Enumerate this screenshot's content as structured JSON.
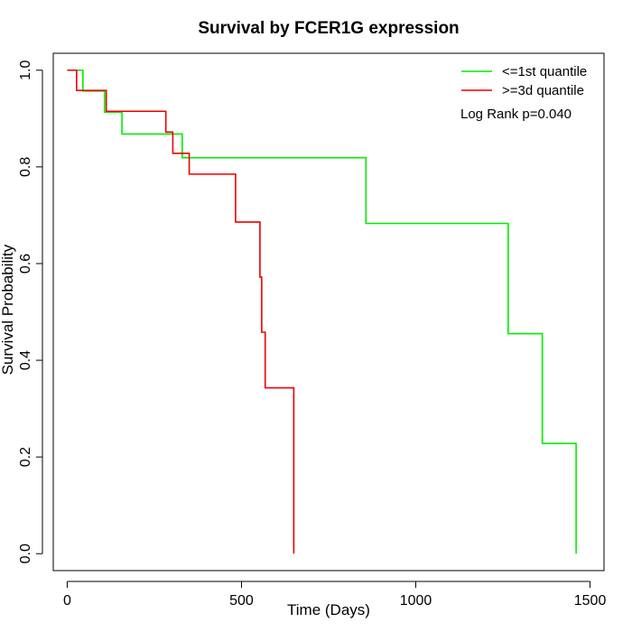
{
  "chart_data": {
    "type": "line",
    "title": "Survival by FCER1G expression",
    "xlabel": "Time (Days)",
    "ylabel": "Survival Probability",
    "xlim": [
      -40,
      1540
    ],
    "ylim": [
      -0.035,
      1.035
    ],
    "xticks": [
      0,
      500,
      1000,
      1500
    ],
    "xtick_labels": [
      "0",
      "500",
      "1000",
      "1500"
    ],
    "yticks": [
      0.0,
      0.2,
      0.4,
      0.6,
      0.8,
      1.0
    ],
    "ytick_labels": [
      "0.0",
      "0.2",
      "0.4",
      "0.6",
      "0.8",
      "1.0"
    ],
    "grid": false,
    "legend_position": "top-right",
    "annotation": "Log Rank p=0.040",
    "series": [
      {
        "name": "<=1st quantile",
        "color": "#00ee00",
        "step": true,
        "points": [
          {
            "x": 0,
            "y": 1.0
          },
          {
            "x": 45,
            "y": 1.0
          },
          {
            "x": 45,
            "y": 0.957
          },
          {
            "x": 107,
            "y": 0.957
          },
          {
            "x": 107,
            "y": 0.913
          },
          {
            "x": 157,
            "y": 0.913
          },
          {
            "x": 157,
            "y": 0.868
          },
          {
            "x": 330,
            "y": 0.868
          },
          {
            "x": 330,
            "y": 0.819
          },
          {
            "x": 857,
            "y": 0.819
          },
          {
            "x": 857,
            "y": 0.683
          },
          {
            "x": 1265,
            "y": 0.683
          },
          {
            "x": 1265,
            "y": 0.455
          },
          {
            "x": 1363,
            "y": 0.455
          },
          {
            "x": 1363,
            "y": 0.228
          },
          {
            "x": 1460,
            "y": 0.228
          },
          {
            "x": 1460,
            "y": 0.0
          }
        ]
      },
      {
        "name": ">=3d quantile",
        "color": "#ee0000",
        "step": true,
        "points": [
          {
            "x": 0,
            "y": 1.0
          },
          {
            "x": 27,
            "y": 1.0
          },
          {
            "x": 27,
            "y": 0.958
          },
          {
            "x": 112,
            "y": 0.958
          },
          {
            "x": 112,
            "y": 0.915
          },
          {
            "x": 283,
            "y": 0.915
          },
          {
            "x": 283,
            "y": 0.872
          },
          {
            "x": 303,
            "y": 0.872
          },
          {
            "x": 303,
            "y": 0.828
          },
          {
            "x": 350,
            "y": 0.828
          },
          {
            "x": 350,
            "y": 0.785
          },
          {
            "x": 483,
            "y": 0.785
          },
          {
            "x": 483,
            "y": 0.686
          },
          {
            "x": 553,
            "y": 0.686
          },
          {
            "x": 553,
            "y": 0.572
          },
          {
            "x": 558,
            "y": 0.572
          },
          {
            "x": 558,
            "y": 0.458
          },
          {
            "x": 568,
            "y": 0.458
          },
          {
            "x": 568,
            "y": 0.343
          },
          {
            "x": 650,
            "y": 0.343
          },
          {
            "x": 650,
            "y": 0.0
          }
        ]
      }
    ]
  }
}
